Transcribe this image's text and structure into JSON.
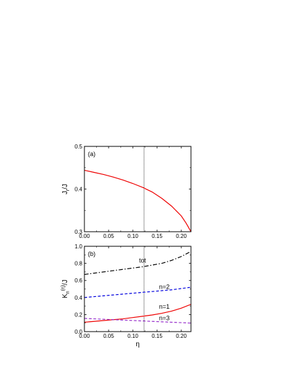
{
  "chart_data": [
    {
      "panel_label": "(a)",
      "type": "line",
      "ylabel": "J",
      "ylabel_sub": "r",
      "ylabel_suffix": "/J",
      "xlim": [
        0,
        0.22
      ],
      "ylim": [
        0.3,
        0.5
      ],
      "xticks": [
        0.0,
        0.05,
        0.1,
        0.15,
        0.2
      ],
      "xtick_labels": [
        "0.00",
        "0.05",
        "0.10",
        "0.15",
        "0.20"
      ],
      "yticks": [
        0.3,
        0.4,
        0.5
      ],
      "ytick_labels": [
        "0.3",
        "0.4",
        "0.5"
      ],
      "vline_x": 0.123,
      "series": [
        {
          "color": "#ee0000",
          "dash": "solid",
          "x": [
            0,
            0.02,
            0.04,
            0.06,
            0.08,
            0.1,
            0.12,
            0.14,
            0.16,
            0.18,
            0.2,
            0.21,
            0.22
          ],
          "y": [
            0.444,
            0.439,
            0.434,
            0.428,
            0.421,
            0.413,
            0.404,
            0.393,
            0.378,
            0.36,
            0.337,
            0.32,
            0.3
          ]
        }
      ]
    },
    {
      "panel_label": "(b)",
      "type": "line",
      "ylabel": "K",
      "ylabel_sub": "n",
      "ylabel_sup": "(η)",
      "ylabel_suffix": "/J",
      "xlabel": "η",
      "xlim": [
        0,
        0.22
      ],
      "ylim": [
        0,
        1.0
      ],
      "xticks": [
        0.0,
        0.05,
        0.1,
        0.15,
        0.2
      ],
      "xtick_labels": [
        "0.00",
        "0.05",
        "0.10",
        "0.15",
        "0.20"
      ],
      "yticks": [
        0.0,
        0.2,
        0.4,
        0.6,
        0.8,
        1.0
      ],
      "ytick_labels": [
        "0.0",
        "0.2",
        "0.4",
        "0.6",
        "0.8",
        "1.0"
      ],
      "vline_x": 0.123,
      "series": [
        {
          "name": "tot",
          "color": "#000000",
          "dash": "dashdot",
          "label_at": [
            0.12,
            0.81
          ],
          "x": [
            0,
            0.02,
            0.04,
            0.06,
            0.08,
            0.1,
            0.12,
            0.14,
            0.16,
            0.18,
            0.2,
            0.22
          ],
          "y": [
            0.67,
            0.685,
            0.7,
            0.715,
            0.73,
            0.745,
            0.76,
            0.78,
            0.8,
            0.835,
            0.88,
            0.94
          ]
        },
        {
          "name": "n=2",
          "color": "#0000dd",
          "dash": "dashed",
          "label_at": [
            0.165,
            0.5
          ],
          "x": [
            0,
            0.02,
            0.04,
            0.06,
            0.08,
            0.1,
            0.12,
            0.14,
            0.16,
            0.18,
            0.2,
            0.22
          ],
          "y": [
            0.4,
            0.41,
            0.42,
            0.43,
            0.44,
            0.45,
            0.46,
            0.47,
            0.48,
            0.49,
            0.505,
            0.52
          ]
        },
        {
          "name": "n=1",
          "color": "#ee0000",
          "dash": "solid",
          "label_at": [
            0.165,
            0.27
          ],
          "x": [
            0,
            0.02,
            0.04,
            0.06,
            0.08,
            0.1,
            0.12,
            0.14,
            0.16,
            0.18,
            0.2,
            0.22
          ],
          "y": [
            0.11,
            0.12,
            0.13,
            0.14,
            0.15,
            0.165,
            0.18,
            0.195,
            0.215,
            0.24,
            0.275,
            0.32
          ]
        },
        {
          "name": "n=3",
          "color": "#9933cc",
          "dash": "dashed",
          "label_at": [
            0.165,
            0.135
          ],
          "x": [
            0,
            0.02,
            0.04,
            0.06,
            0.08,
            0.1,
            0.12,
            0.14,
            0.16,
            0.18,
            0.2,
            0.22
          ],
          "y": [
            0.155,
            0.15,
            0.145,
            0.14,
            0.135,
            0.13,
            0.125,
            0.12,
            0.115,
            0.11,
            0.105,
            0.1
          ]
        }
      ]
    }
  ]
}
